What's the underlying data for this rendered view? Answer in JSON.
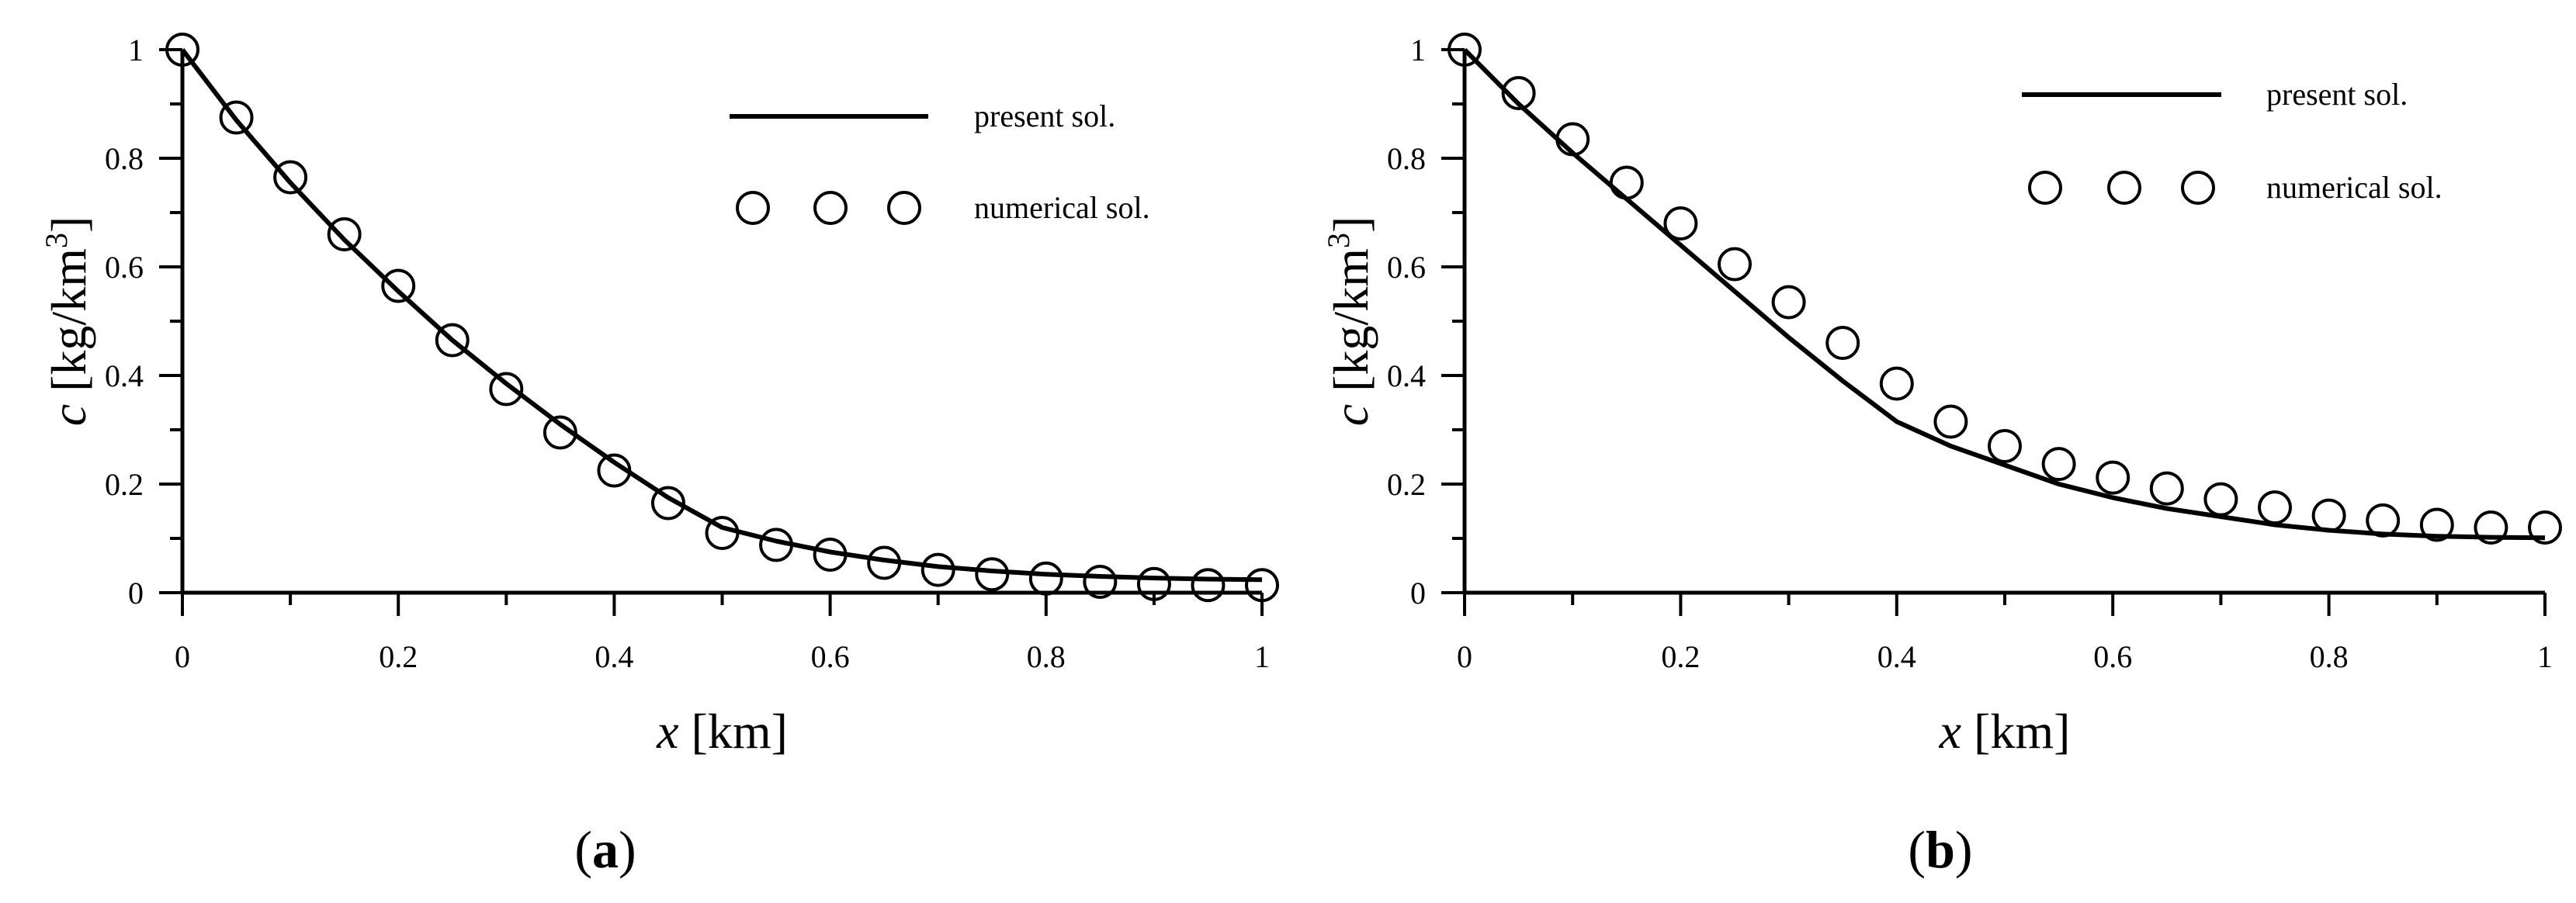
{
  "figure": {
    "panels": [
      {
        "label_open": "(",
        "label_letter": "a",
        "label_close": ")"
      },
      {
        "label_open": "(",
        "label_letter": "b",
        "label_close": ")"
      }
    ]
  },
  "chart_data": [
    {
      "type": "line",
      "panel": "a",
      "title": "",
      "xlabel": {
        "var": "x",
        "unit": " [km]"
      },
      "ylabel": {
        "var": "c",
        "unit_pre": " [kg/km",
        "sup": "3",
        "unit_post": "]"
      },
      "xlim": [
        0,
        1
      ],
      "ylim": [
        0,
        1
      ],
      "xticks": [
        0,
        0.2,
        0.4,
        0.6,
        0.8,
        1
      ],
      "xtick_labels": [
        "0",
        "0.2",
        "0.4",
        "0.6",
        "0.8",
        "1"
      ],
      "yticks": [
        0,
        0.2,
        0.4,
        0.6,
        0.8,
        1
      ],
      "ytick_labels": [
        "0",
        "0.2",
        "0.4",
        "0.6",
        "0.8",
        "1"
      ],
      "legend_position": "top-right",
      "series": [
        {
          "name": "present sol.",
          "style": "line",
          "x": [
            0,
            0.05,
            0.1,
            0.15,
            0.2,
            0.25,
            0.3,
            0.35,
            0.4,
            0.45,
            0.5,
            0.55,
            0.6,
            0.65,
            0.7,
            0.75,
            0.8,
            0.85,
            0.9,
            0.95,
            1.0
          ],
          "y": [
            1.0,
            0.87,
            0.755,
            0.65,
            0.555,
            0.465,
            0.385,
            0.31,
            0.24,
            0.175,
            0.12,
            0.095,
            0.075,
            0.06,
            0.048,
            0.04,
            0.034,
            0.03,
            0.027,
            0.025,
            0.024
          ]
        },
        {
          "name": "numerical sol.",
          "style": "open-circle",
          "x": [
            0,
            0.05,
            0.1,
            0.15,
            0.2,
            0.25,
            0.3,
            0.35,
            0.4,
            0.45,
            0.5,
            0.55,
            0.6,
            0.65,
            0.7,
            0.75,
            0.8,
            0.85,
            0.9,
            0.95,
            1.0
          ],
          "y": [
            1.0,
            0.875,
            0.765,
            0.66,
            0.565,
            0.465,
            0.375,
            0.295,
            0.225,
            0.165,
            0.11,
            0.088,
            0.07,
            0.055,
            0.042,
            0.034,
            0.026,
            0.02,
            0.016,
            0.014,
            0.014
          ]
        }
      ]
    },
    {
      "type": "line",
      "panel": "b",
      "title": "",
      "xlabel": {
        "var": "x",
        "unit": " [km]"
      },
      "ylabel": {
        "var": "c",
        "unit_pre": " [kg/km",
        "sup": "3",
        "unit_post": "]"
      },
      "xlim": [
        0,
        1
      ],
      "ylim": [
        0,
        1
      ],
      "xticks": [
        0,
        0.2,
        0.4,
        0.6,
        0.8,
        1
      ],
      "xtick_labels": [
        "0",
        "0.2",
        "0.4",
        "0.6",
        "0.8",
        "1"
      ],
      "yticks": [
        0,
        0.2,
        0.4,
        0.6,
        0.8,
        1
      ],
      "ytick_labels": [
        "0",
        "0.2",
        "0.4",
        "0.6",
        "0.8",
        "1"
      ],
      "legend_position": "top-right",
      "series": [
        {
          "name": "present sol.",
          "style": "line",
          "x": [
            0,
            0.05,
            0.1,
            0.15,
            0.2,
            0.25,
            0.3,
            0.35,
            0.4,
            0.45,
            0.5,
            0.55,
            0.6,
            0.65,
            0.7,
            0.75,
            0.8,
            0.85,
            0.9,
            0.95,
            1.0
          ],
          "y": [
            1.0,
            0.9,
            0.81,
            0.725,
            0.64,
            0.555,
            0.47,
            0.39,
            0.315,
            0.27,
            0.235,
            0.2,
            0.175,
            0.155,
            0.14,
            0.125,
            0.115,
            0.108,
            0.104,
            0.102,
            0.101
          ]
        },
        {
          "name": "numerical sol.",
          "style": "open-circle",
          "x": [
            0,
            0.05,
            0.1,
            0.15,
            0.2,
            0.25,
            0.3,
            0.35,
            0.4,
            0.45,
            0.5,
            0.55,
            0.6,
            0.65,
            0.7,
            0.75,
            0.8,
            0.85,
            0.9,
            0.95,
            1.0
          ],
          "y": [
            1.0,
            0.92,
            0.835,
            0.755,
            0.68,
            0.605,
            0.535,
            0.46,
            0.385,
            0.315,
            0.27,
            0.237,
            0.212,
            0.192,
            0.172,
            0.157,
            0.142,
            0.133,
            0.125,
            0.12,
            0.12
          ]
        }
      ]
    }
  ]
}
